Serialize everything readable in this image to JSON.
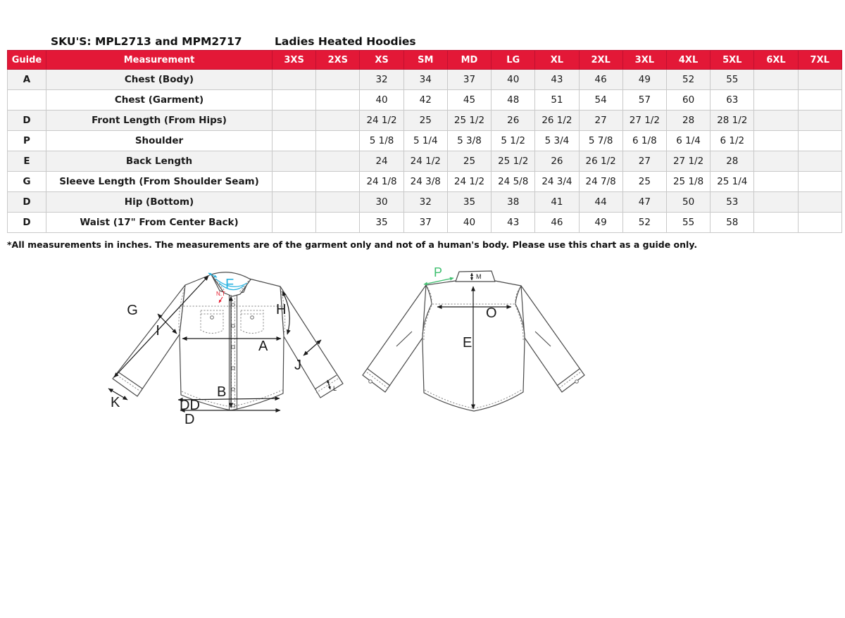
{
  "header": {
    "sku_label": "SKU'S: MPL2713 and MPM2717",
    "product_name": "Ladies Heated Hoodies"
  },
  "table": {
    "headers": [
      "Guide",
      "Measurement",
      "3XS",
      "2XS",
      "XS",
      "SM",
      "MD",
      "LG",
      "XL",
      "2XL",
      "3XL",
      "4XL",
      "5XL",
      "6XL",
      "7XL"
    ],
    "rows": [
      {
        "guide": "A",
        "measurement": "Chest (Body)",
        "values": [
          "",
          "",
          "32",
          "34",
          "37",
          "40",
          "43",
          "46",
          "49",
          "52",
          "55",
          "",
          ""
        ]
      },
      {
        "guide": "",
        "measurement": "Chest (Garment)",
        "values": [
          "",
          "",
          "40",
          "42",
          "45",
          "48",
          "51",
          "54",
          "57",
          "60",
          "63",
          "",
          ""
        ]
      },
      {
        "guide": "D",
        "measurement": "Front Length (From Hips)",
        "values": [
          "",
          "",
          "24 1/2",
          "25",
          "25 1/2",
          "26",
          "26 1/2",
          "27",
          "27 1/2",
          "28",
          "28 1/2",
          "",
          ""
        ]
      },
      {
        "guide": "P",
        "measurement": "Shoulder",
        "values": [
          "",
          "",
          "5 1/8",
          "5 1/4",
          "5 3/8",
          "5 1/2",
          "5 3/4",
          "5 7/8",
          "6 1/8",
          "6 1/4",
          "6 1/2",
          "",
          ""
        ]
      },
      {
        "guide": "E",
        "measurement": "Back Length",
        "values": [
          "",
          "",
          "24",
          "24 1/2",
          "25",
          "25 1/2",
          "26",
          "26 1/2",
          "27",
          "27 1/2",
          "28",
          "",
          ""
        ]
      },
      {
        "guide": "G",
        "measurement": "Sleeve Length (From Shoulder Seam)",
        "values": [
          "",
          "",
          "24 1/8",
          "24 3/8",
          "24 1/2",
          "24 5/8",
          "24 3/4",
          "24 7/8",
          "25",
          "25 1/8",
          "25 1/4",
          "",
          ""
        ]
      },
      {
        "guide": "D",
        "measurement": "Hip (Bottom)",
        "values": [
          "",
          "",
          "30",
          "32",
          "35",
          "38",
          "41",
          "44",
          "47",
          "50",
          "53",
          "",
          ""
        ]
      },
      {
        "guide": "D",
        "measurement": "Waist (17\" From Center Back)",
        "values": [
          "",
          "",
          "35",
          "37",
          "40",
          "43",
          "46",
          "49",
          "52",
          "55",
          "58",
          "",
          ""
        ]
      }
    ]
  },
  "footnote": "*All measurements in inches. The measurements are of the garment only and not of a human's body. Please use this chart as a guide only.",
  "diagrams": {
    "front": {
      "labels": {
        "A": "A",
        "B": "B",
        "D": "D",
        "DD": "DD",
        "G": "G",
        "H": "H",
        "I": "I",
        "J": "J",
        "K": "K",
        "L": "L",
        "F": "F",
        "NT": "N.T"
      }
    },
    "back": {
      "labels": {
        "P": "P",
        "M": "M",
        "O": "O",
        "E": "E"
      }
    }
  },
  "colors": {
    "header_bg": "#E31837",
    "header_text": "#FFFFFF",
    "row_alt": "#F2F2F2",
    "label_cyan": "#2BB3E0",
    "label_red": "#E8192C",
    "label_green": "#3FBF6F",
    "drawing_line": "#4A4A4A"
  }
}
